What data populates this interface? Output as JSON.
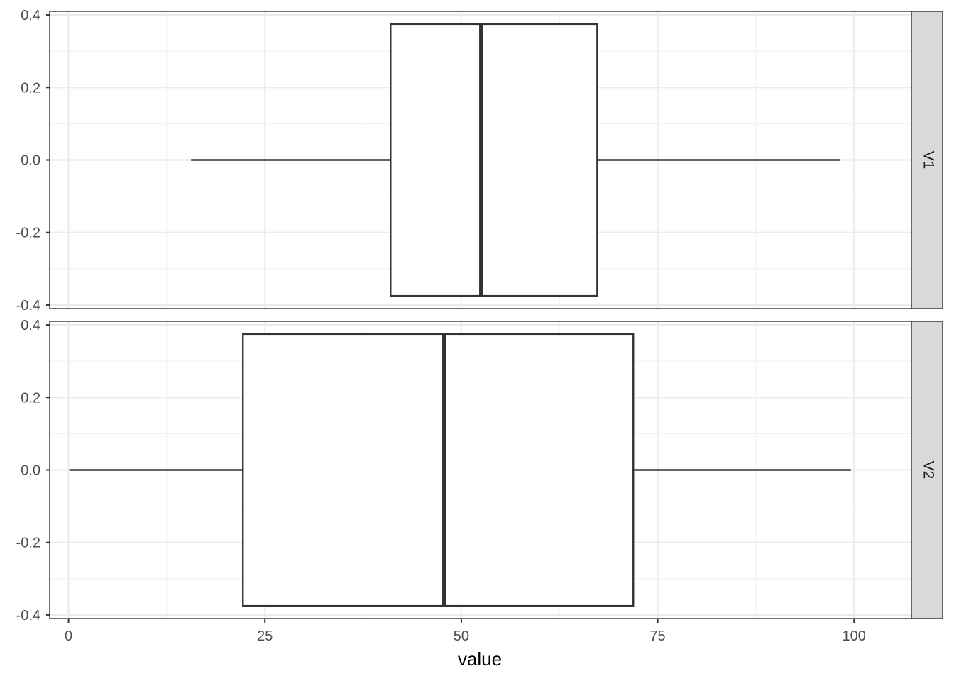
{
  "chart_data": {
    "type": "boxplot",
    "xlabel": "value",
    "x_ticks": [
      "0",
      "25",
      "50",
      "75",
      "100"
    ],
    "x_tick_values": [
      0,
      25,
      50,
      75,
      100
    ],
    "xlim": [
      -2.4,
      107.3
    ],
    "y_ticks": [
      "0.4",
      "0.2",
      "0.0",
      "-0.2",
      "-0.4"
    ],
    "y_tick_values": [
      0.4,
      0.2,
      0.0,
      -0.2,
      -0.4
    ],
    "ylim": [
      -0.41,
      0.41
    ],
    "grid": true,
    "box_fill": "#ffffff",
    "box_stroke": "#333333",
    "strip_fill": "#d9d9d9",
    "facets": [
      {
        "label": "V1",
        "min": 15.6,
        "q1": 41.0,
        "median": 52.5,
        "q3": 67.3,
        "max": 98.2
      },
      {
        "label": "V2",
        "min": 0.1,
        "q1": 22.2,
        "median": 47.8,
        "q3": 71.9,
        "max": 99.6
      }
    ]
  }
}
